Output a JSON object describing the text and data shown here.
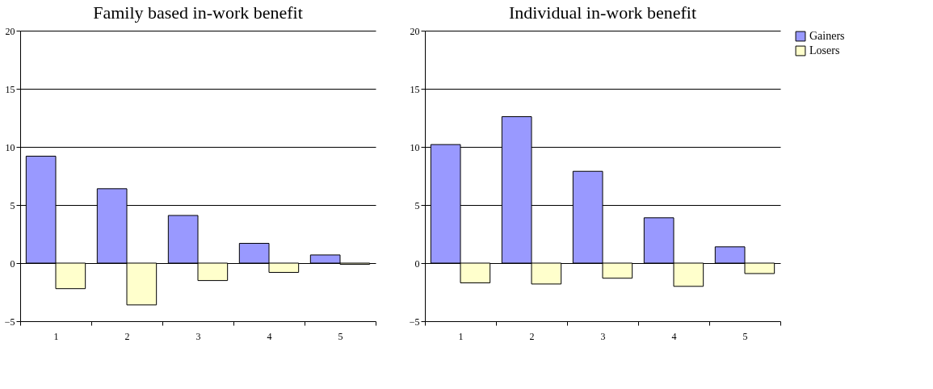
{
  "chart_data": [
    {
      "type": "bar",
      "title": "Family based in-work benefit",
      "categories": [
        "1",
        "2",
        "3",
        "4",
        "5"
      ],
      "ylim": [
        -5,
        20
      ],
      "yticks": [
        -5,
        0,
        5,
        10,
        15,
        20
      ],
      "grid": "y",
      "legend": false,
      "series": [
        {
          "color": "#9999ff",
          "values": [
            9.2,
            6.4,
            4.1,
            1.7,
            0.7
          ]
        },
        {
          "color": "#ffffcc",
          "values": [
            -2.2,
            -3.6,
            -1.5,
            -0.8,
            -0.1
          ]
        }
      ]
    },
    {
      "type": "bar",
      "title": "Individual in-work benefit",
      "categories": [
        "1",
        "2",
        "3",
        "4",
        "5"
      ],
      "ylim": [
        -5,
        20
      ],
      "yticks": [
        -5,
        0,
        5,
        10,
        15,
        20
      ],
      "grid": "y",
      "legend": "right",
      "series": [
        {
          "name": "Gainers",
          "color": "#9999ff",
          "values": [
            10.2,
            12.6,
            7.9,
            3.9,
            1.4
          ]
        },
        {
          "name": "Losers",
          "color": "#ffffcc",
          "values": [
            -1.7,
            -1.8,
            -1.3,
            -2.0,
            -0.9
          ]
        }
      ]
    }
  ]
}
